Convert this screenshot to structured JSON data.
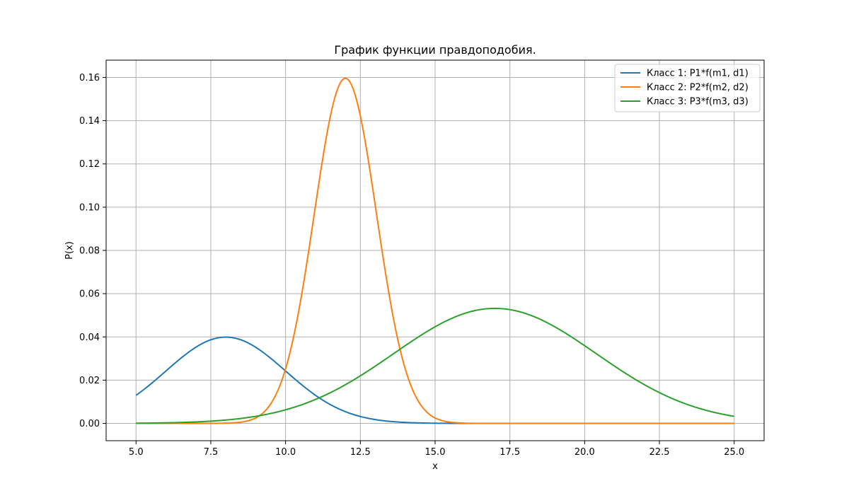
{
  "chart_data": {
    "type": "line",
    "title": "График функции правдоподобия.",
    "xlabel": "x",
    "ylabel": "P(x)",
    "xlim": [
      4.0,
      26.0
    ],
    "ylim": [
      -0.008,
      0.168
    ],
    "x_range": [
      5.0,
      25.0
    ],
    "x_ticks": [
      5.0,
      7.5,
      10.0,
      12.5,
      15.0,
      17.5,
      20.0,
      22.5,
      25.0
    ],
    "x_tick_labels": [
      "5.0",
      "7.5",
      "10.0",
      "12.5",
      "15.0",
      "17.5",
      "20.0",
      "22.5",
      "25.0"
    ],
    "y_ticks": [
      0.0,
      0.02,
      0.04,
      0.06,
      0.08,
      0.1,
      0.12,
      0.14,
      0.16
    ],
    "y_tick_labels": [
      "0.00",
      "0.02",
      "0.04",
      "0.06",
      "0.08",
      "0.10",
      "0.12",
      "0.14",
      "0.16"
    ],
    "grid": true,
    "legend_position": "top-right",
    "series": [
      {
        "name": "Класс 1: P1*f(m1, d1)",
        "color": "#1f77b4",
        "peak_x": 8.0,
        "peak_y": 0.0399,
        "x": [
          5.0,
          6.0,
          7.0,
          8.0,
          9.0,
          10.0,
          11.0,
          12.0,
          13.0,
          14.0,
          15.0,
          16.0,
          17.0,
          18.0,
          19.0,
          20.0,
          21.0,
          22.0,
          23.0,
          24.0,
          25.0
        ],
        "values": [
          0.013,
          0.0242,
          0.0352,
          0.0399,
          0.0352,
          0.0242,
          0.013,
          0.0054,
          0.0018,
          0.0004,
          0.0001,
          0.0,
          0.0,
          0.0,
          0.0,
          0.0,
          0.0,
          0.0,
          0.0,
          0.0,
          0.0
        ]
      },
      {
        "name": "Класс 2: P2*f(m2, d2)",
        "color": "#ff7f0e",
        "peak_x": 12.0,
        "peak_y": 0.1596,
        "x": [
          5.0,
          6.0,
          7.0,
          8.0,
          9.0,
          9.5,
          10.0,
          10.5,
          11.0,
          11.5,
          12.0,
          12.5,
          13.0,
          13.5,
          14.0,
          14.5,
          15.0,
          15.5,
          16.0,
          17.0,
          18.0,
          20.0,
          22.5,
          25.0
        ],
        "values": [
          0.0,
          0.0,
          0.0,
          0.0001,
          0.0018,
          0.007,
          0.0216,
          0.0519,
          0.0968,
          0.1408,
          0.1596,
          0.1408,
          0.0968,
          0.0519,
          0.0216,
          0.007,
          0.0018,
          0.0004,
          0.0001,
          0.0,
          0.0,
          0.0,
          0.0,
          0.0
        ]
      },
      {
        "name": "Класс 3: P3*f(m3, d3)",
        "color": "#2ca02c",
        "peak_x": 17.0,
        "peak_y": 0.0532,
        "x": [
          5.0,
          6.0,
          7.0,
          8.0,
          9.0,
          10.0,
          11.0,
          12.0,
          13.0,
          14.0,
          15.0,
          16.0,
          17.0,
          18.0,
          19.0,
          20.0,
          21.0,
          22.0,
          23.0,
          24.0,
          25.0
        ],
        "values": [
          0.0001,
          0.0002,
          0.0004,
          0.0007,
          0.0016,
          0.0035,
          0.007,
          0.0128,
          0.0216,
          0.0324,
          0.0431,
          0.0506,
          0.0532,
          0.0506,
          0.0431,
          0.0324,
          0.0216,
          0.0128,
          0.007,
          0.0035,
          0.0016
        ]
      }
    ]
  }
}
